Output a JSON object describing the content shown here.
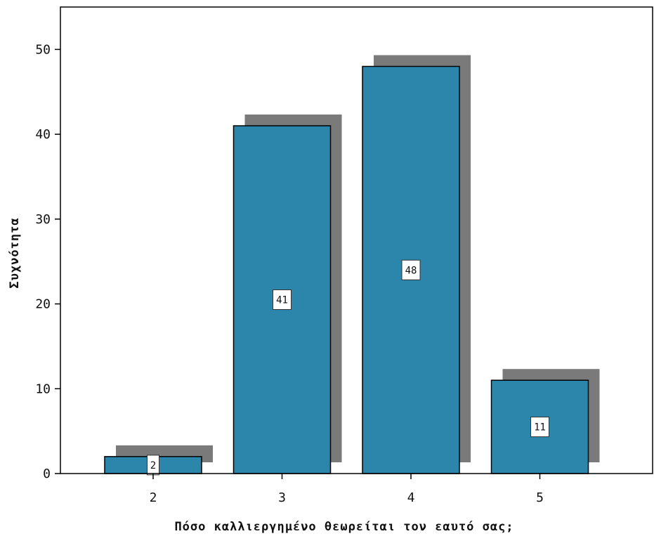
{
  "chart_data": {
    "type": "bar",
    "title": "",
    "xlabel": "Πόσο καλλιεργημένο θεωρείται τον εαυτό σας;",
    "ylabel": "Συχνότητα",
    "categories": [
      "2",
      "3",
      "4",
      "5"
    ],
    "values": [
      2,
      41,
      48,
      11
    ],
    "data_labels": [
      "2",
      "41",
      "48",
      "11"
    ],
    "ylim": [
      0,
      55
    ],
    "y_ticks": [
      0,
      10,
      20,
      30,
      40,
      50
    ],
    "y_tick_labels": [
      "0",
      "10",
      "20",
      "30",
      "40",
      "50"
    ],
    "grid": false,
    "legend": "none",
    "bar_shadow": true,
    "colors": {
      "bar": "#2c86ab",
      "shadow": "#7a7a7a",
      "axis": "#000000"
    }
  }
}
